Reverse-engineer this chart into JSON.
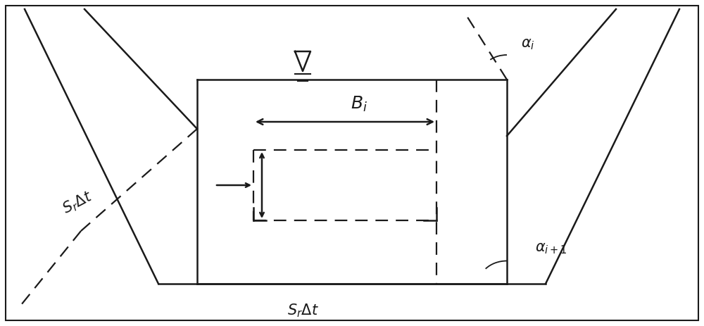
{
  "fig_width": 10.0,
  "fig_height": 4.63,
  "bg_color": "#ffffff",
  "line_color": "#1a1a1a",
  "text_color": "#1a1a1a",
  "lw_main": 1.8,
  "lw_dashed": 1.6
}
